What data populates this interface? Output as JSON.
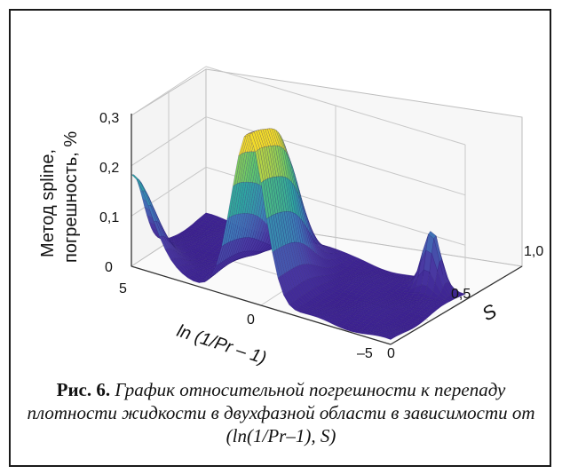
{
  "caption": {
    "label": "Рис. 6.",
    "text": "График относительной погрешности к перепаду плотности жидкости в двухфазной области в зависимости от (ln(1/Pr–1), S)"
  },
  "chart_data": {
    "type": "surface3d",
    "zlabel_line1": "Метод spline,",
    "zlabel_line2": "погрешность, %",
    "xlabel": "ln (1/Pr – 1)",
    "ylabel": "S",
    "x_ticks": [
      "5",
      "0",
      "–5"
    ],
    "y_ticks": [
      "0",
      "0,5",
      "1,0"
    ],
    "z_ticks": [
      "0",
      "0,1",
      "0,2",
      "0,3"
    ],
    "xlim": [
      5,
      -5
    ],
    "ylim": [
      0,
      1.0
    ],
    "zlim": [
      0,
      0.3
    ],
    "grid": true,
    "colormap": [
      "#3b1f8f",
      "#4a3aa3",
      "#3f78b8",
      "#2ea7a0",
      "#62c76a",
      "#f2dc2a"
    ],
    "peaks": [
      {
        "x": 5.0,
        "s": 0.0,
        "z": 0.18
      },
      {
        "x": 0.5,
        "s": 0.0,
        "z": 0.32
      },
      {
        "x": 0.5,
        "s": 0.45,
        "z": 0.22
      },
      {
        "x": -4.0,
        "s": 0.9,
        "z": 0.12
      }
    ]
  }
}
